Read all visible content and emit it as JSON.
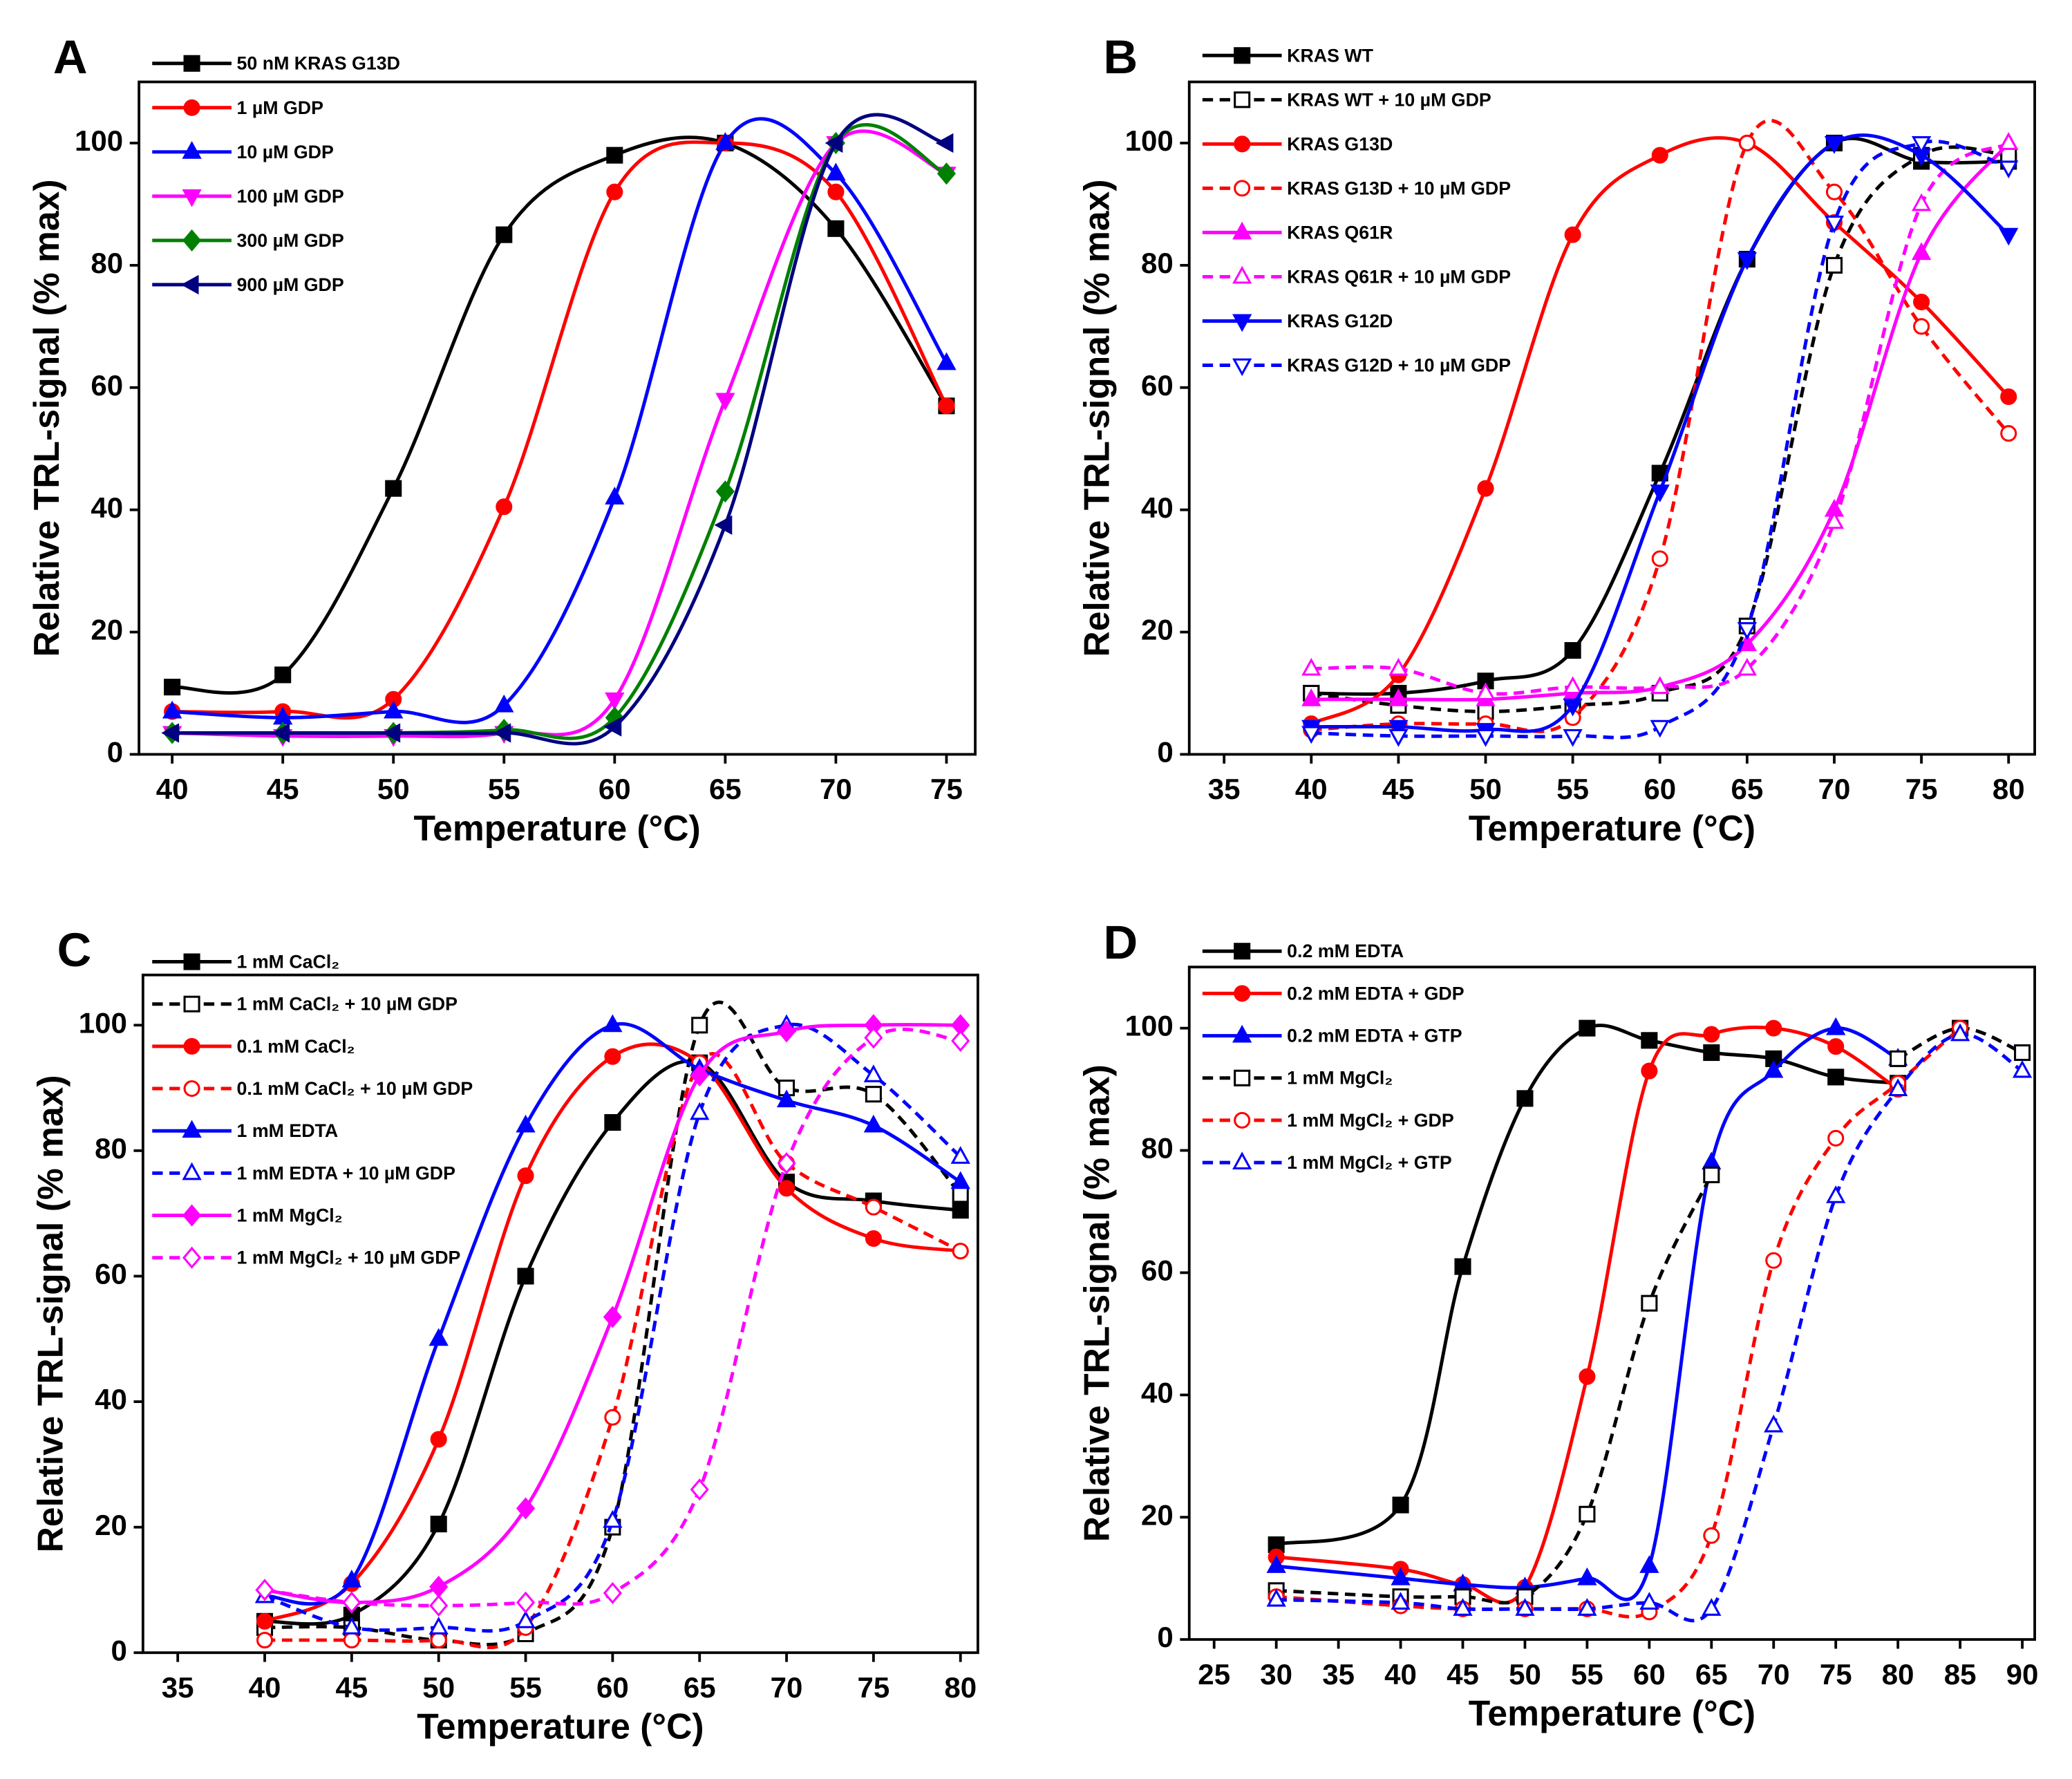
{
  "chart_data": [
    {
      "type": "line",
      "label": "A",
      "xlabel": "Temperature (°C)",
      "ylabel": "Relative TRL-signal (% max)",
      "xlim": [
        38.5,
        76.3
      ],
      "xticks": [
        40,
        45,
        50,
        55,
        60,
        65,
        70,
        75
      ],
      "ylim": [
        0,
        110
      ],
      "yticks": [
        0,
        20,
        40,
        60,
        80,
        100
      ],
      "x": [
        40,
        45,
        50,
        55,
        60,
        65,
        70,
        75
      ],
      "series": [
        {
          "name": "50 nM KRAS G13D",
          "color": "#000000",
          "marker": "square",
          "filled": true,
          "dashed": false,
          "values": [
            11,
            13,
            43.5,
            85,
            98,
            100,
            86,
            57
          ]
        },
        {
          "name": "1 µM GDP",
          "color": "#ff0000",
          "marker": "circle",
          "filled": true,
          "dashed": false,
          "values": [
            7,
            7,
            9,
            40.5,
            92,
            100,
            92,
            57
          ]
        },
        {
          "name": "10 µM GDP",
          "color": "#0000ff",
          "marker": "triangle-up",
          "filled": true,
          "dashed": false,
          "values": [
            7,
            6,
            7,
            8,
            42,
            100,
            95,
            64
          ]
        },
        {
          "name": "100 µM GDP",
          "color": "#ff00ff",
          "marker": "triangle-down",
          "filled": true,
          "dashed": false,
          "values": [
            3.5,
            3,
            3,
            3.5,
            9,
            58,
            100,
            95
          ]
        },
        {
          "name": "300 µM GDP",
          "color": "#008000",
          "marker": "diamond",
          "filled": true,
          "dashed": false,
          "values": [
            3.5,
            3.5,
            3.5,
            4,
            6,
            43,
            100,
            95
          ]
        },
        {
          "name": "900 µM GDP",
          "color": "#000080",
          "marker": "triangle-left",
          "filled": true,
          "dashed": false,
          "values": [
            3.5,
            3.5,
            3.5,
            3.5,
            4.5,
            37.5,
            100,
            100
          ]
        }
      ]
    },
    {
      "type": "line",
      "label": "B",
      "xlabel": "Temperature (°C)",
      "ylabel": "Relative TRL-signal (% max)",
      "xlim": [
        33,
        81.5
      ],
      "xticks": [
        35,
        40,
        45,
        50,
        55,
        60,
        65,
        70,
        75,
        80
      ],
      "ylim": [
        0,
        110
      ],
      "yticks": [
        0,
        20,
        40,
        60,
        80,
        100
      ],
      "x": [
        40,
        45,
        50,
        55,
        60,
        65,
        70,
        75,
        80
      ],
      "series": [
        {
          "name": "KRAS WT",
          "color": "#000000",
          "marker": "square",
          "filled": true,
          "dashed": false,
          "values": [
            10,
            10,
            12,
            17,
            46,
            81,
            100,
            97,
            97
          ]
        },
        {
          "name": "KRAS WT + 10 µM GDP",
          "color": "#000000",
          "marker": "square",
          "filled": false,
          "dashed": true,
          "values": [
            10,
            8,
            7,
            8,
            10,
            21,
            80,
            98,
            98
          ]
        },
        {
          "name": "KRAS G13D",
          "color": "#ff0000",
          "marker": "circle",
          "filled": true,
          "dashed": false,
          "values": [
            5,
            13,
            43.5,
            85,
            98,
            100,
            87,
            74,
            58.5
          ]
        },
        {
          "name": "KRAS G13D + 10 µM GDP",
          "color": "#ff0000",
          "marker": "circle",
          "filled": false,
          "dashed": true,
          "values": [
            4,
            5,
            5,
            6,
            32,
            100,
            92,
            70,
            52.5
          ]
        },
        {
          "name": "KRAS Q61R",
          "color": "#ff00ff",
          "marker": "triangle-up",
          "filled": true,
          "dashed": false,
          "values": [
            9,
            9,
            9,
            10,
            11,
            18,
            40,
            82,
            100
          ]
        },
        {
          "name": "KRAS Q61R + 10 µM GDP",
          "color": "#ff00ff",
          "marker": "triangle-up",
          "filled": false,
          "dashed": true,
          "values": [
            14,
            14,
            10,
            11,
            11,
            14,
            38,
            90,
            100
          ]
        },
        {
          "name": "KRAS G12D",
          "color": "#0000ff",
          "marker": "triangle-down",
          "filled": true,
          "dashed": false,
          "values": [
            4.5,
            4.5,
            4,
            8,
            43,
            81,
            100,
            98,
            85
          ]
        },
        {
          "name": "KRAS G12D + 10 µM GDP",
          "color": "#0000ff",
          "marker": "triangle-down",
          "filled": false,
          "dashed": true,
          "values": [
            3.5,
            3,
            3,
            3,
            4.5,
            20.5,
            87,
            100,
            96
          ]
        }
      ]
    },
    {
      "type": "line",
      "label": "C",
      "xlabel": "Temperature (°C)",
      "ylabel": "Relative TRL-signal (% max)",
      "xlim": [
        33,
        81
      ],
      "xticks": [
        35,
        40,
        45,
        50,
        55,
        60,
        65,
        70,
        75,
        80
      ],
      "ylim": [
        0,
        108
      ],
      "yticks": [
        0,
        20,
        40,
        60,
        80,
        100
      ],
      "x": [
        40,
        45,
        50,
        55,
        60,
        65,
        70,
        75,
        80
      ],
      "series": [
        {
          "name": "1 mM CaCl₂",
          "color": "#000000",
          "marker": "square",
          "filled": true,
          "dashed": false,
          "values": [
            5,
            6,
            20.5,
            60,
            84.5,
            94,
            75,
            72,
            70.5
          ]
        },
        {
          "name": "1 mM CaCl₂ + 10 µM GDP",
          "color": "#000000",
          "marker": "square",
          "filled": false,
          "dashed": true,
          "values": [
            4,
            4,
            2,
            3,
            20,
            100,
            90,
            89,
            73
          ]
        },
        {
          "name": "0.1 mM CaCl₂",
          "color": "#ff0000",
          "marker": "circle",
          "filled": true,
          "dashed": false,
          "values": [
            5,
            11,
            34,
            76,
            95,
            94,
            74,
            66,
            64
          ]
        },
        {
          "name": "0.1 mM CaCl₂ + 10 µM GDP",
          "color": "#ff0000",
          "marker": "circle",
          "filled": false,
          "dashed": true,
          "values": [
            2,
            2,
            2,
            4,
            37.5,
            94,
            78,
            71,
            64
          ]
        },
        {
          "name": "1 mM EDTA",
          "color": "#0000ff",
          "marker": "triangle-up",
          "filled": true,
          "dashed": false,
          "values": [
            9,
            11.5,
            50,
            84,
            100,
            93,
            88,
            84,
            75
          ]
        },
        {
          "name": "1 mM EDTA + 10 µM GDP",
          "color": "#0000ff",
          "marker": "triangle-up",
          "filled": false,
          "dashed": true,
          "values": [
            9,
            4,
            4,
            5,
            21,
            86,
            100,
            92,
            79
          ]
        },
        {
          "name": "1 mM MgCl₂",
          "color": "#ff00ff",
          "marker": "diamond",
          "filled": true,
          "dashed": false,
          "values": [
            10,
            8,
            10.5,
            23,
            53.5,
            92,
            99,
            100,
            100
          ]
        },
        {
          "name": "1 mM MgCl₂ + 10 µM GDP",
          "color": "#ff00ff",
          "marker": "diamond",
          "filled": false,
          "dashed": true,
          "values": [
            10,
            8,
            7.5,
            8,
            9.5,
            26,
            78,
            98,
            97.5
          ]
        }
      ]
    },
    {
      "type": "line",
      "label": "D",
      "xlabel": "Temperature (°C)",
      "ylabel": "Relative TRL-signal (% max)",
      "xlim": [
        23,
        91
      ],
      "xticks": [
        25,
        30,
        35,
        40,
        45,
        50,
        55,
        60,
        65,
        70,
        75,
        80,
        85,
        90
      ],
      "ylim": [
        0,
        110
      ],
      "yticks": [
        0,
        20,
        40,
        60,
        80,
        100
      ],
      "x": [
        30,
        40,
        45,
        50,
        55,
        60,
        65,
        70,
        75,
        80,
        85,
        90
      ],
      "series": [
        {
          "name": "0.2 mM EDTA",
          "color": "#000000",
          "marker": "square",
          "filled": true,
          "dashed": false,
          "values": [
            15.5,
            22,
            61,
            88.5,
            100,
            98,
            96,
            95,
            92,
            91,
            null,
            null
          ]
        },
        {
          "name": "0.2 mM EDTA + GDP",
          "color": "#ff0000",
          "marker": "circle",
          "filled": true,
          "dashed": false,
          "values": [
            13.5,
            11.5,
            9,
            8.5,
            43,
            93,
            99,
            100,
            97,
            90,
            null,
            null
          ]
        },
        {
          "name": "0.2 mM EDTA + GTP",
          "color": "#0000ff",
          "marker": "triangle-up",
          "filled": true,
          "dashed": false,
          "values": [
            12,
            10,
            9,
            8.5,
            10,
            12,
            78,
            93,
            100,
            95,
            null,
            null
          ]
        },
        {
          "name": "1 mM MgCl₂",
          "color": "#000000",
          "marker": "square",
          "filled": false,
          "dashed": true,
          "values": [
            8,
            7,
            7,
            7,
            20.5,
            55,
            76,
            null,
            null,
            95,
            100,
            96
          ]
        },
        {
          "name": "1 mM MgCl₂ + GDP",
          "color": "#ff0000",
          "marker": "circle",
          "filled": false,
          "dashed": true,
          "values": [
            7,
            5.5,
            5,
            5,
            5,
            4.5,
            17,
            62,
            82,
            91,
            100,
            null
          ]
        },
        {
          "name": "1 mM MgCl₂ + GTP",
          "color": "#0000ff",
          "marker": "triangle-up",
          "filled": false,
          "dashed": true,
          "values": [
            6.5,
            6,
            5,
            5,
            5,
            6,
            5,
            35,
            72.5,
            90,
            99,
            93
          ]
        }
      ]
    }
  ]
}
